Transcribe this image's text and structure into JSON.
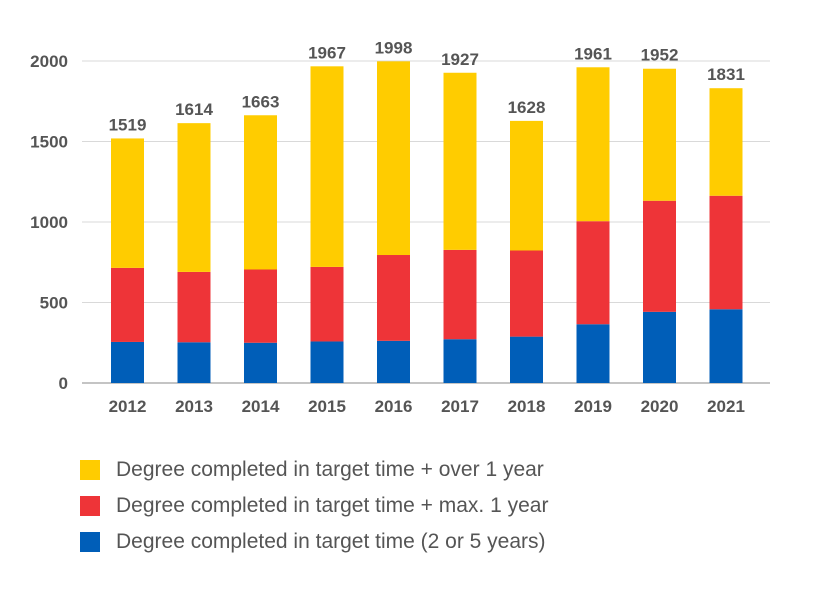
{
  "chart_data": {
    "type": "bar",
    "stacked": true,
    "categories": [
      "2012",
      "2013",
      "2014",
      "2015",
      "2016",
      "2017",
      "2018",
      "2019",
      "2020",
      "2021"
    ],
    "series": [
      {
        "name": "Degree completed in target time (2 or 5 years)",
        "color": "#005EB8",
        "values": [
          255,
          253,
          250,
          258,
          262,
          272,
          288,
          365,
          442,
          458
        ]
      },
      {
        "name": "Degree completed in target time + max. 1 year",
        "color": "#EE3438",
        "values": [
          460,
          437,
          455,
          463,
          533,
          555,
          535,
          640,
          690,
          705
        ]
      },
      {
        "name": "Degree completed in target time + over 1 year",
        "color": "#FFCC00",
        "values": [
          804,
          924,
          958,
          1246,
          1203,
          1100,
          805,
          956,
          820,
          668
        ]
      }
    ],
    "totals": [
      1519,
      1614,
      1663,
      1967,
      1998,
      1927,
      1628,
      1961,
      1952,
      1831
    ],
    "yticks": [
      0,
      500,
      1000,
      1500,
      2000
    ],
    "ylim": [
      0,
      2000
    ],
    "grid": true,
    "legend_position": "bottom",
    "title": "",
    "xlabel": "",
    "ylabel": ""
  }
}
